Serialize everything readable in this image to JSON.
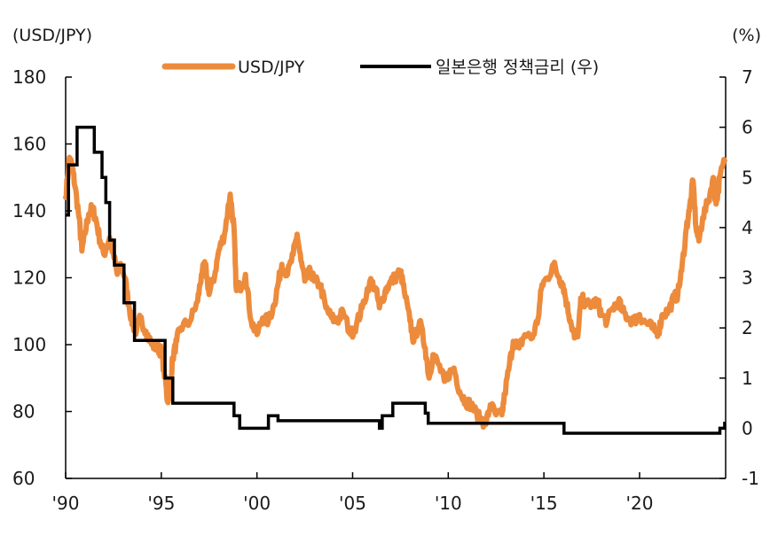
{
  "chart_data": {
    "type": "line",
    "left_axis_unit": "(USD/JPY)",
    "right_axis_unit": "(%)",
    "x_tick_labels": [
      "'90",
      "'95",
      "'00",
      "'05",
      "'10",
      "'15",
      "'20"
    ],
    "x_ticks": [
      1990,
      1995,
      2000,
      2005,
      2010,
      2015,
      2020
    ],
    "xlim": [
      1990,
      2024.5
    ],
    "ylim_left": [
      60,
      180
    ],
    "y_ticks_left": [
      60,
      80,
      100,
      120,
      140,
      160,
      180
    ],
    "ylim_right": [
      -1,
      7
    ],
    "y_ticks_right": [
      -1,
      0,
      1,
      2,
      3,
      4,
      5,
      6,
      7
    ],
    "legend_position": "top-center",
    "grid": false,
    "series": [
      {
        "name": "USD/JPY",
        "axis": "left",
        "color": "#ED8B3C",
        "points": [
          [
            1990.0,
            144
          ],
          [
            1990.2,
            156
          ],
          [
            1990.35,
            153
          ],
          [
            1990.5,
            147
          ],
          [
            1990.7,
            138
          ],
          [
            1990.85,
            128
          ],
          [
            1991.0,
            133
          ],
          [
            1991.2,
            139
          ],
          [
            1991.4,
            141
          ],
          [
            1991.6,
            137
          ],
          [
            1991.8,
            131
          ],
          [
            1992.0,
            127
          ],
          [
            1992.3,
            132
          ],
          [
            1992.5,
            127
          ],
          [
            1992.7,
            121
          ],
          [
            1992.9,
            124
          ],
          [
            1993.1,
            120
          ],
          [
            1993.3,
            112
          ],
          [
            1993.5,
            106
          ],
          [
            1993.7,
            104
          ],
          [
            1993.9,
            108
          ],
          [
            1994.2,
            104
          ],
          [
            1994.5,
            100
          ],
          [
            1994.8,
            99
          ],
          [
            1995.0,
            98
          ],
          [
            1995.2,
            90
          ],
          [
            1995.33,
            83
          ],
          [
            1995.45,
            87
          ],
          [
            1995.6,
            96
          ],
          [
            1995.8,
            101
          ],
          [
            1996.0,
            105
          ],
          [
            1996.5,
            107
          ],
          [
            1996.9,
            113
          ],
          [
            1997.1,
            121
          ],
          [
            1997.3,
            124
          ],
          [
            1997.5,
            115
          ],
          [
            1997.8,
            121
          ],
          [
            1998.0,
            128
          ],
          [
            1998.3,
            133
          ],
          [
            1998.6,
            145
          ],
          [
            1998.8,
            135
          ],
          [
            1998.9,
            118
          ],
          [
            1999.1,
            117
          ],
          [
            1999.4,
            121
          ],
          [
            1999.7,
            107
          ],
          [
            2000.0,
            103
          ],
          [
            2000.3,
            108
          ],
          [
            2000.6,
            107
          ],
          [
            2000.9,
            112
          ],
          [
            2001.1,
            118
          ],
          [
            2001.3,
            124
          ],
          [
            2001.6,
            121
          ],
          [
            2001.9,
            127
          ],
          [
            2002.1,
            133
          ],
          [
            2002.3,
            125
          ],
          [
            2002.5,
            119
          ],
          [
            2002.8,
            122
          ],
          [
            2003.0,
            119
          ],
          [
            2003.3,
            118
          ],
          [
            2003.6,
            111
          ],
          [
            2003.9,
            108
          ],
          [
            2004.2,
            107
          ],
          [
            2004.5,
            110
          ],
          [
            2004.9,
            103
          ],
          [
            2005.2,
            106
          ],
          [
            2005.5,
            111
          ],
          [
            2005.9,
            119
          ],
          [
            2006.2,
            117
          ],
          [
            2006.4,
            111
          ],
          [
            2006.7,
            116
          ],
          [
            2006.9,
            118
          ],
          [
            2007.2,
            120
          ],
          [
            2007.5,
            122
          ],
          [
            2007.7,
            116
          ],
          [
            2008.0,
            107
          ],
          [
            2008.2,
            101
          ],
          [
            2008.5,
            107
          ],
          [
            2008.8,
            99
          ],
          [
            2009.0,
            90
          ],
          [
            2009.2,
            97
          ],
          [
            2009.5,
            94
          ],
          [
            2009.8,
            89
          ],
          [
            2010.0,
            91
          ],
          [
            2010.3,
            93
          ],
          [
            2010.6,
            86
          ],
          [
            2010.9,
            83
          ],
          [
            2011.2,
            82
          ],
          [
            2011.5,
            79
          ],
          [
            2011.8,
            77
          ],
          [
            2012.0,
            77
          ],
          [
            2012.2,
            82
          ],
          [
            2012.5,
            79
          ],
          [
            2012.8,
            79
          ],
          [
            2012.95,
            85
          ],
          [
            2013.2,
            94
          ],
          [
            2013.4,
            101
          ],
          [
            2013.7,
            99
          ],
          [
            2014.0,
            103
          ],
          [
            2014.4,
            102
          ],
          [
            2014.7,
            108
          ],
          [
            2014.9,
            118
          ],
          [
            2015.2,
            120
          ],
          [
            2015.5,
            124
          ],
          [
            2015.8,
            120
          ],
          [
            2016.0,
            118
          ],
          [
            2016.2,
            112
          ],
          [
            2016.4,
            107
          ],
          [
            2016.6,
            102
          ],
          [
            2016.8,
            104
          ],
          [
            2016.95,
            114
          ],
          [
            2017.2,
            112
          ],
          [
            2017.5,
            112
          ],
          [
            2017.8,
            113
          ],
          [
            2018.0,
            109
          ],
          [
            2018.3,
            107
          ],
          [
            2018.6,
            111
          ],
          [
            2018.9,
            113
          ],
          [
            2019.1,
            110
          ],
          [
            2019.4,
            108
          ],
          [
            2019.7,
            107
          ],
          [
            2020.0,
            109
          ],
          [
            2020.2,
            107
          ],
          [
            2020.5,
            106
          ],
          [
            2020.8,
            104
          ],
          [
            2021.0,
            104
          ],
          [
            2021.2,
            109
          ],
          [
            2021.5,
            110
          ],
          [
            2021.8,
            114
          ],
          [
            2022.0,
            115
          ],
          [
            2022.2,
            122
          ],
          [
            2022.45,
            135
          ],
          [
            2022.6,
            140
          ],
          [
            2022.8,
            149
          ],
          [
            2022.95,
            135
          ],
          [
            2023.1,
            131
          ],
          [
            2023.3,
            138
          ],
          [
            2023.6,
            143
          ],
          [
            2023.85,
            150
          ],
          [
            2024.0,
            142
          ],
          [
            2024.2,
            150
          ],
          [
            2024.45,
            155
          ]
        ]
      },
      {
        "name": "일본은행 정책금리 (우)",
        "axis": "right",
        "color": "#000000",
        "step_points": [
          [
            1990.0,
            4.25
          ],
          [
            1990.15,
            5.25
          ],
          [
            1990.6,
            6.0
          ],
          [
            1991.5,
            5.5
          ],
          [
            1991.9,
            5.0
          ],
          [
            1992.1,
            4.5
          ],
          [
            1992.3,
            3.75
          ],
          [
            1992.55,
            3.25
          ],
          [
            1993.05,
            2.5
          ],
          [
            1993.6,
            1.75
          ],
          [
            1995.2,
            1.0
          ],
          [
            1995.6,
            0.5
          ],
          [
            1998.8,
            0.25
          ],
          [
            1999.1,
            0.0
          ],
          [
            2000.6,
            0.25
          ],
          [
            2001.1,
            0.15
          ],
          [
            2006.4,
            0.0
          ],
          [
            2006.55,
            0.25
          ],
          [
            2007.1,
            0.5
          ],
          [
            2008.8,
            0.3
          ],
          [
            2008.95,
            0.1
          ],
          [
            2016.05,
            -0.1
          ],
          [
            2024.2,
            0.0
          ],
          [
            2024.45,
            0.1
          ]
        ]
      }
    ]
  }
}
